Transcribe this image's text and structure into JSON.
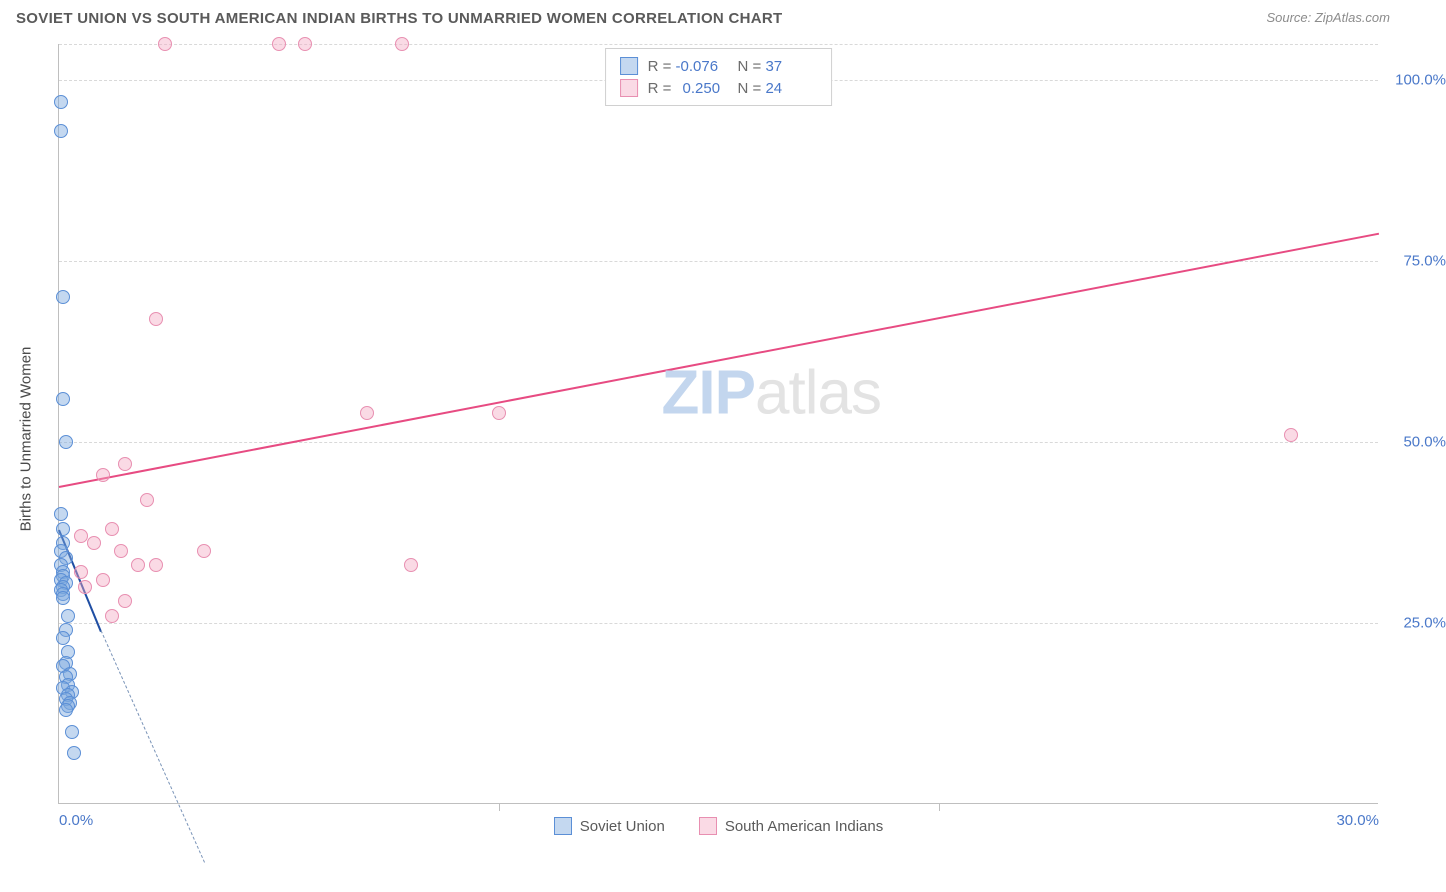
{
  "header": {
    "title": "SOVIET UNION VS SOUTH AMERICAN INDIAN BIRTHS TO UNMARRIED WOMEN CORRELATION CHART",
    "source_prefix": "Source: ",
    "source_name": "ZipAtlas.com"
  },
  "watermark": {
    "part1": "ZIP",
    "part2": "atlas"
  },
  "chart": {
    "type": "scatter",
    "ylabel": "Births to Unmarried Women",
    "background_color": "#ffffff",
    "grid_color": "#d9d9d9",
    "axis_color": "#bfbfbf",
    "xlim": [
      0,
      30
    ],
    "ylim": [
      0,
      105
    ],
    "x_ticks": [
      0,
      10,
      20,
      30
    ],
    "x_tick_labels": [
      "0.0%",
      "",
      "",
      "30.0%"
    ],
    "y_ticks": [
      25,
      50,
      75,
      100
    ],
    "y_tick_labels": [
      "25.0%",
      "50.0%",
      "75.0%",
      "100.0%"
    ],
    "y_gridlines": [
      25,
      50,
      75,
      100,
      105
    ],
    "point_radius": 7,
    "series": [
      {
        "id": "soviet",
        "name": "Soviet Union",
        "fill_color": "rgba(124,168,222,0.45)",
        "stroke_color": "#5b8fd6",
        "trend_color": "#1f4ea3",
        "trend_dash_color": "#7a94b8",
        "R": "-0.076",
        "N": "37",
        "trend": {
          "x1": 0,
          "y1": 38,
          "x2": 0.95,
          "y2": 24
        },
        "trend_dash_ext": {
          "x1": 0.95,
          "y1": 24,
          "x2": 3.3,
          "y2": -8
        },
        "points": [
          [
            0.05,
            97
          ],
          [
            0.05,
            93
          ],
          [
            0.1,
            70
          ],
          [
            0.1,
            56
          ],
          [
            0.15,
            50
          ],
          [
            0.05,
            40
          ],
          [
            0.1,
            38
          ],
          [
            0.1,
            36
          ],
          [
            0.05,
            35
          ],
          [
            0.15,
            34
          ],
          [
            0.05,
            33
          ],
          [
            0.1,
            32
          ],
          [
            0.1,
            31.5
          ],
          [
            0.05,
            31
          ],
          [
            0.15,
            30.5
          ],
          [
            0.1,
            30
          ],
          [
            0.05,
            29.5
          ],
          [
            0.1,
            29
          ],
          [
            0.1,
            28.5
          ],
          [
            0.2,
            26
          ],
          [
            0.15,
            24
          ],
          [
            0.1,
            23
          ],
          [
            0.2,
            21
          ],
          [
            0.15,
            19.5
          ],
          [
            0.1,
            19
          ],
          [
            0.25,
            18
          ],
          [
            0.15,
            17.5
          ],
          [
            0.2,
            16.5
          ],
          [
            0.1,
            16
          ],
          [
            0.3,
            15.5
          ],
          [
            0.2,
            15
          ],
          [
            0.15,
            14.5
          ],
          [
            0.25,
            14
          ],
          [
            0.2,
            13.5
          ],
          [
            0.15,
            13
          ],
          [
            0.3,
            10
          ],
          [
            0.35,
            7
          ]
        ]
      },
      {
        "id": "sai",
        "name": "South American Indians",
        "fill_color": "rgba(243,168,193,0.42)",
        "stroke_color": "#e88fb1",
        "trend_color": "#e74b82",
        "trend_dash_color": "#e88fb1",
        "R": "0.250",
        "N": "24",
        "trend": {
          "x1": 0,
          "y1": 44,
          "x2": 30,
          "y2": 79
        },
        "points": [
          [
            2.4,
            105
          ],
          [
            5.0,
            105
          ],
          [
            5.6,
            105
          ],
          [
            7.8,
            105
          ],
          [
            2.2,
            67
          ],
          [
            7.0,
            54
          ],
          [
            10.0,
            54
          ],
          [
            28.0,
            51
          ],
          [
            1.5,
            47
          ],
          [
            1.0,
            45.5
          ],
          [
            2.0,
            42
          ],
          [
            1.2,
            38
          ],
          [
            0.5,
            37
          ],
          [
            0.8,
            36
          ],
          [
            3.3,
            35
          ],
          [
            1.4,
            35
          ],
          [
            1.8,
            33
          ],
          [
            2.2,
            33
          ],
          [
            8.0,
            33
          ],
          [
            0.5,
            32
          ],
          [
            1.0,
            31
          ],
          [
            0.6,
            30
          ],
          [
            1.5,
            28
          ],
          [
            1.2,
            26
          ]
        ]
      }
    ]
  },
  "legend_top": {
    "r_label": "R =",
    "n_label": "N ="
  }
}
